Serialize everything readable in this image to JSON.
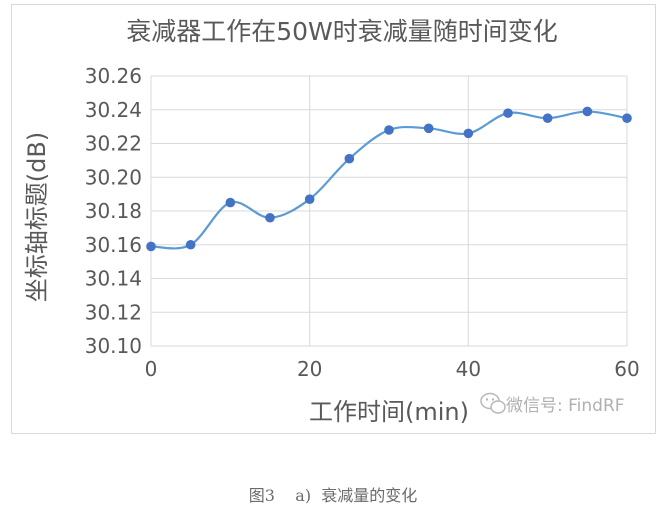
{
  "chart_data": {
    "type": "line",
    "title": "衰减器工作在50W时衰减量随时间变化",
    "xlabel": "工作时间(min)",
    "ylabel": "坐标轴标题(dB)",
    "x": [
      0,
      5,
      10,
      15,
      20,
      25,
      30,
      35,
      40,
      45,
      50,
      55,
      60
    ],
    "series": [
      {
        "values": [
          30.159,
          30.16,
          30.185,
          30.176,
          30.187,
          30.211,
          30.228,
          30.229,
          30.226,
          30.238,
          30.235,
          30.239,
          30.235
        ]
      }
    ],
    "xlim": [
      0,
      60
    ],
    "ylim": [
      30.1,
      30.26
    ],
    "xticks": [
      "0",
      "20",
      "40",
      "60"
    ],
    "yticks": [
      "30.10",
      "30.12",
      "30.14",
      "30.16",
      "30.18",
      "30.20",
      "30.22",
      "30.24",
      "30.26"
    ],
    "grid": true,
    "legend": "none",
    "colors": {
      "line": "#5b9bd5",
      "marker": "#4472c4",
      "grid": "#d9d9d9",
      "text": "#595959"
    }
  },
  "watermark": "微信号: FindRF",
  "watermark_icon": "wechat-icon",
  "caption": "图3    a)  衰减量的变化"
}
